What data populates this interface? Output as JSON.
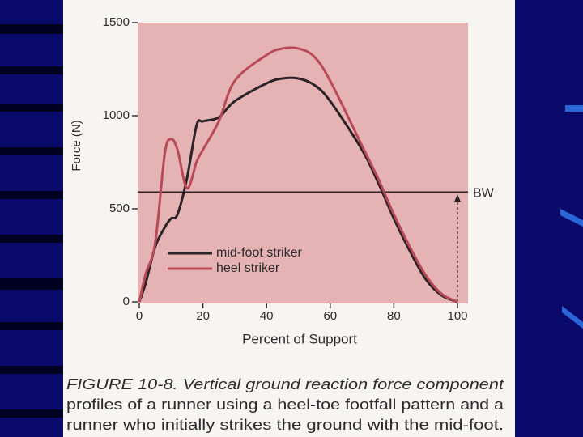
{
  "chart_data": {
    "type": "line",
    "y_label": "Force (N)",
    "x_label": "Percent of Support",
    "x": [
      0,
      2,
      5,
      8,
      10,
      12,
      15,
      18,
      20,
      25,
      30,
      40,
      45,
      50,
      55,
      60,
      70,
      75,
      80,
      85,
      90,
      95,
      100
    ],
    "series": [
      {
        "name": "mid-foot striker",
        "color": "#2a2226",
        "values": [
          0,
          100,
          296,
          400,
          448,
          470,
          665,
          948,
          970,
          991,
          1078,
          1174,
          1200,
          1200,
          1165,
          1078,
          817,
          643,
          448,
          274,
          122,
          35,
          0
        ]
      },
      {
        "name": "heel striker",
        "color": "#b84a58",
        "values": [
          0,
          150,
          317,
          796,
          874,
          817,
          610,
          752,
          817,
          970,
          1187,
          1326,
          1361,
          1361,
          1317,
          1187,
          839,
          665,
          470,
          296,
          143,
          43,
          0
        ]
      }
    ],
    "xlim": [
      0,
      100
    ],
    "xticks": [
      0,
      20,
      40,
      60,
      80,
      100
    ],
    "ylim": [
      0,
      1500
    ],
    "yticks": [
      0,
      500,
      1000,
      1500
    ],
    "annotation": {
      "text": "BW",
      "value": 590,
      "x": 100
    },
    "caption": [
      "FIGURE 10-8. Vertical ground reaction force component",
      "profiles of a runner using a heel-toe footfall pattern and a",
      "runner who initially strikes the ground with the mid-foot."
    ]
  }
}
